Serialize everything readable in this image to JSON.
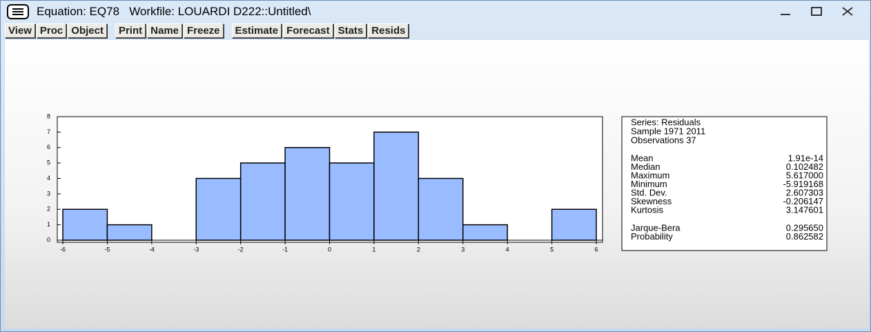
{
  "window": {
    "title": "Equation: EQ78   Workfile: LOUARDI D222::Untitled\\"
  },
  "toolbar": [
    [
      "View",
      "Proc",
      "Object"
    ],
    [
      "Print",
      "Name",
      "Freeze"
    ],
    [
      "Estimate",
      "Forecast",
      "Stats",
      "Resids"
    ]
  ],
  "chart_data": {
    "type": "histogram",
    "bins": [
      -6,
      -5,
      -4,
      -3,
      -2,
      -1,
      0,
      1,
      2,
      3,
      4,
      5,
      6
    ],
    "counts": [
      2,
      1,
      0,
      4,
      5,
      6,
      5,
      7,
      4,
      1,
      0,
      2
    ],
    "xlim": [
      -6,
      6
    ],
    "xticks": [
      -6,
      -5,
      -4,
      -3,
      -2,
      -1,
      0,
      1,
      2,
      3,
      4,
      5,
      6
    ],
    "ylim": [
      0,
      8
    ],
    "yticks": [
      0,
      1,
      2,
      3,
      4,
      5,
      6,
      7,
      8
    ],
    "color": "#99bbff"
  },
  "stats": {
    "header": [
      "Series: Residuals",
      "Sample 1971 2011",
      "Observations 37"
    ],
    "moments": [
      {
        "label": "Mean",
        "value": "1.91e-14"
      },
      {
        "label": "Median",
        "value": "0.102482"
      },
      {
        "label": "Maximum",
        "value": "5.617000"
      },
      {
        "label": "Minimum",
        "value": "-5.919168"
      },
      {
        "label": "Std. Dev.",
        "value": "2.607303"
      },
      {
        "label": "Skewness",
        "value": "-0.206147"
      },
      {
        "label": "Kurtosis",
        "value": "3.147601"
      }
    ],
    "tests": [
      {
        "label": "Jarque-Bera",
        "value": "0.295650"
      },
      {
        "label": "Probability",
        "value": "0.862582"
      }
    ]
  }
}
